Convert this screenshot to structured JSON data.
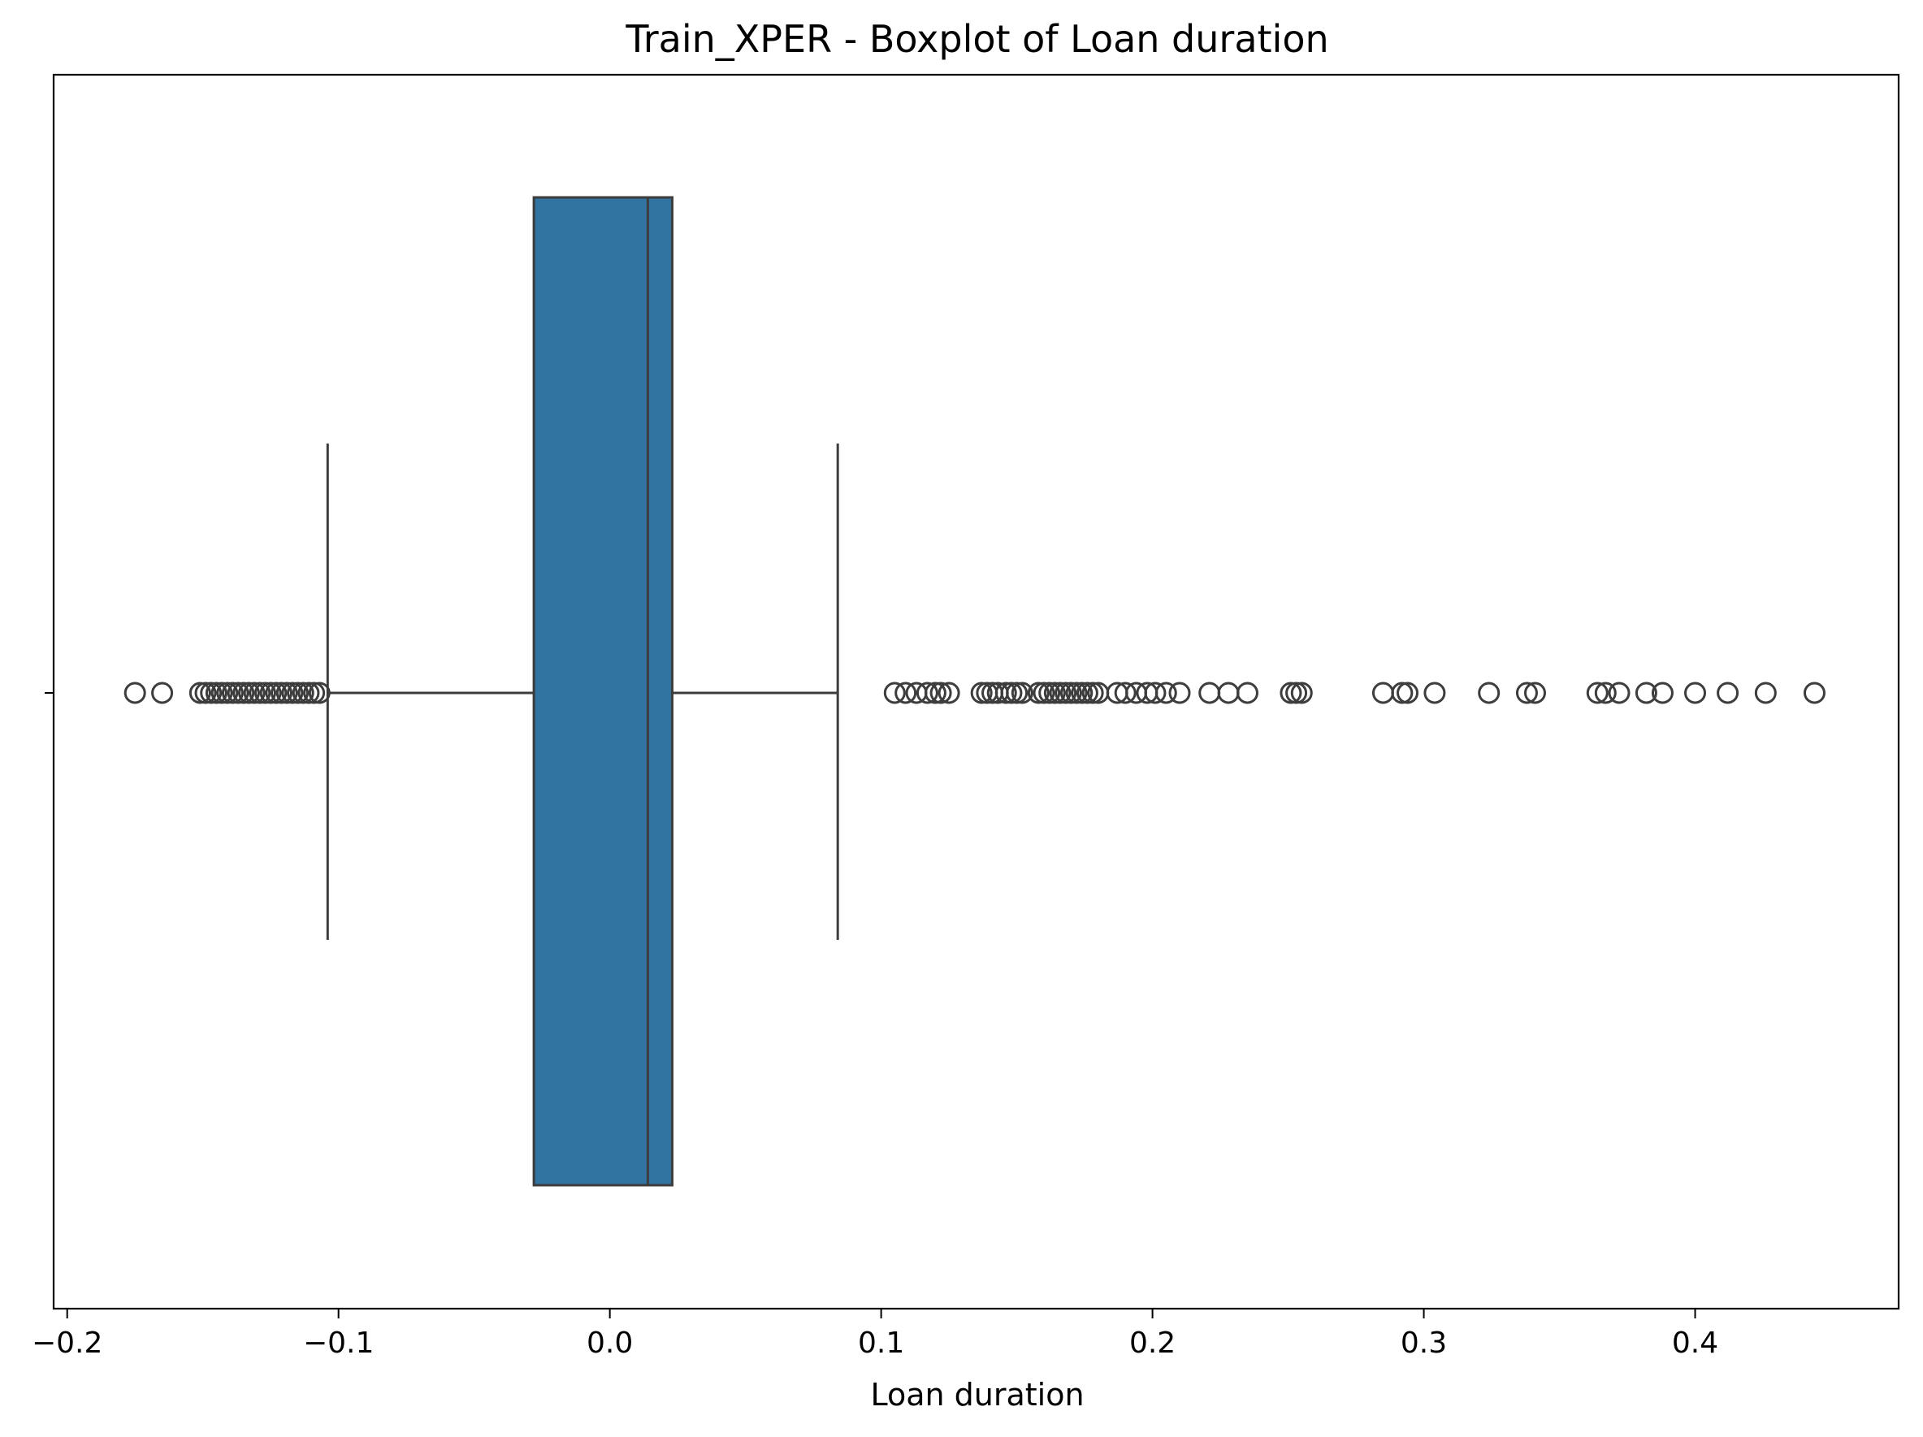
{
  "chart_data": {
    "type": "box",
    "title": "Train_XPER - Boxplot of Loan duration",
    "xlabel": "Loan duration",
    "ylabel": "",
    "xlim": [
      -0.205,
      0.475
    ],
    "xticks": [
      -0.2,
      -0.1,
      0.0,
      0.1,
      0.2,
      0.3,
      0.4
    ],
    "xtick_labels": [
      "−0.2",
      "−0.1",
      "0.0",
      "0.1",
      "0.2",
      "0.3",
      "0.4"
    ],
    "grid": false,
    "colors": {
      "box_fill": "#3274a1",
      "line": "#3d3d3d",
      "axes": "#000000"
    },
    "box": {
      "whisker_low": -0.104,
      "q1": -0.028,
      "median": 0.014,
      "q3": 0.023,
      "whisker_high": 0.084
    },
    "outliers": [
      -0.175,
      -0.165,
      -0.151,
      -0.149,
      -0.147,
      -0.145,
      -0.143,
      -0.141,
      -0.139,
      -0.137,
      -0.135,
      -0.133,
      -0.131,
      -0.129,
      -0.127,
      -0.125,
      -0.123,
      -0.121,
      -0.119,
      -0.117,
      -0.115,
      -0.113,
      -0.111,
      -0.109,
      -0.107,
      0.105,
      0.109,
      0.113,
      0.117,
      0.12,
      0.122,
      0.125,
      0.137,
      0.139,
      0.141,
      0.143,
      0.146,
      0.148,
      0.15,
      0.152,
      0.158,
      0.16,
      0.162,
      0.164,
      0.166,
      0.168,
      0.17,
      0.172,
      0.174,
      0.176,
      0.178,
      0.18,
      0.187,
      0.19,
      0.194,
      0.198,
      0.201,
      0.205,
      0.21,
      0.221,
      0.228,
      0.235,
      0.251,
      0.253,
      0.255,
      0.285,
      0.292,
      0.294,
      0.304,
      0.324,
      0.338,
      0.341,
      0.364,
      0.367,
      0.372,
      0.382,
      0.388,
      0.4,
      0.412,
      0.426,
      0.444
    ]
  }
}
